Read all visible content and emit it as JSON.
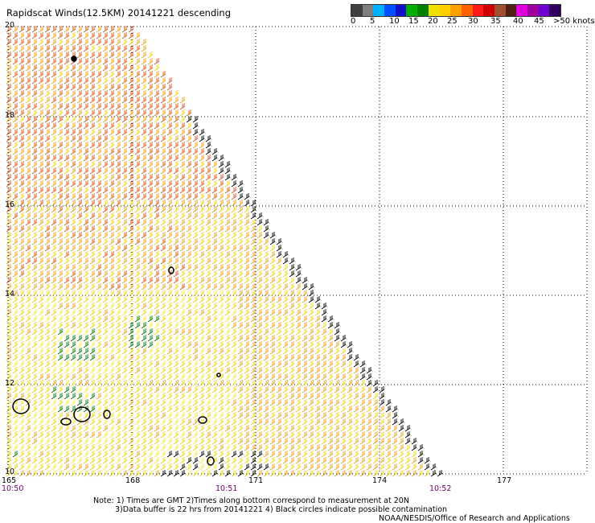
{
  "title": "Rapidscat Winds(12.5KM) 20141221 descending",
  "legend": {
    "colors": [
      "#404040",
      "#7f7f7f",
      "#00b0ff",
      "#0050ff",
      "#1010c8",
      "#00b000",
      "#008000",
      "#f0e000",
      "#ffd000",
      "#ffa000",
      "#ff6000",
      "#ff1a1a",
      "#d00000",
      "#a05030",
      "#502010",
      "#e000e0",
      "#a000a0",
      "#7000d0",
      "#300060"
    ],
    "labels": [
      "0",
      "5",
      "10",
      "15",
      "20",
      "25",
      "30",
      "35",
      "40",
      "45",
      ">50 knots"
    ]
  },
  "map": {
    "lat_labels": [
      "20",
      "18",
      "16",
      "14",
      "12",
      "10"
    ],
    "lon_labels": [
      "165",
      "168",
      "171",
      "174",
      "177"
    ],
    "time_labels": [
      "10:50",
      "10:51",
      "10:52"
    ],
    "wind_colors": {
      "orange_dark": "#cc5a1a",
      "orange": "#e8a020",
      "yellow": "#f2d21a",
      "light_yellow": "#f6e84a",
      "green": "#0a7a0a",
      "black": "#000000"
    }
  },
  "notes": [
    "Note: 1) Times are GMT 2)Times along bottom correspond to measurement at 20N",
    "3)Data buffer is 22 hrs from 20141221 4) Black circles indicate possible contamination",
    "NOAA/NESDIS/Office of Research and Applications"
  ]
}
